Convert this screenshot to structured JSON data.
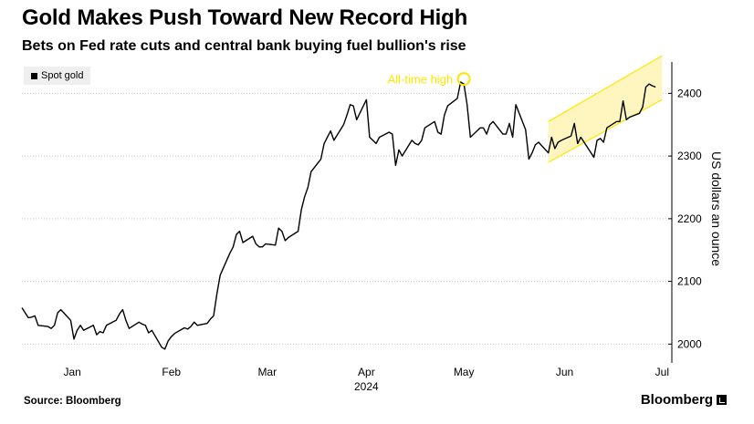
{
  "header": {
    "title": "Gold Makes Push Toward New Record High",
    "subtitle": "Bets on Fed rate cuts and central bank buying fuel bullion's rise"
  },
  "legend": {
    "label": "Spot gold",
    "color": "#000000"
  },
  "footer": {
    "source": "Source: Bloomberg",
    "brand": "Bloomberg"
  },
  "colors": {
    "line": "#000000",
    "annotation": "#ffe500",
    "channel": "#fff6bf",
    "grid": "#c8c8c8"
  },
  "chart_data": {
    "type": "line",
    "title": "Gold Makes Push Toward New Record High",
    "subtitle": "Bets on Fed rate cuts and central bank buying fuel bullion's rise",
    "ylabel": "US dollars an ounce",
    "xlabel": "",
    "ylim": [
      1970,
      2450
    ],
    "y_ticks": [
      2000,
      2100,
      2200,
      2300,
      2400
    ],
    "x_ticks": [
      {
        "label": "Jan",
        "x": 15.5
      },
      {
        "label": "Feb",
        "x": 46
      },
      {
        "label": "Mar",
        "x": 75.5
      },
      {
        "label": "Apr",
        "x": 106
      },
      {
        "label": "May",
        "x": 136
      },
      {
        "label": "Jun",
        "x": 167
      },
      {
        "label": "Jul",
        "x": 197
      }
    ],
    "x_year_label": "2024",
    "x_year_under": "Apr",
    "grid": "horizontal-dotted",
    "legend_position": "top-left",
    "series": [
      {
        "name": "Spot gold",
        "x": [
          0,
          2,
          3,
          4,
          5,
          8,
          9,
          10,
          11,
          12,
          15,
          16,
          17,
          18,
          19,
          22,
          23,
          24,
          25,
          26,
          29,
          30,
          31,
          32,
          33,
          36,
          37,
          38,
          39,
          40,
          43,
          44,
          45,
          46,
          47,
          50,
          51,
          52,
          53,
          54,
          57,
          58,
          59,
          60,
          61,
          64,
          65,
          66,
          67,
          68,
          71,
          72,
          73,
          74,
          75,
          78,
          79,
          80,
          81,
          82,
          85,
          86,
          87,
          88,
          89,
          92,
          93,
          94,
          95,
          96,
          99,
          100,
          101,
          102,
          103,
          106,
          107,
          108,
          109,
          110,
          113,
          114,
          115,
          116,
          117,
          120,
          121,
          122,
          123,
          124,
          127,
          128,
          129,
          130,
          131,
          134,
          135,
          136,
          137,
          138,
          141,
          142,
          143,
          144,
          145,
          148,
          149,
          150,
          151,
          152,
          155,
          156,
          157,
          158,
          159,
          162,
          163,
          164,
          165,
          166,
          169,
          170,
          171,
          172,
          173,
          176,
          177,
          178,
          179,
          180,
          183,
          184,
          185,
          186,
          187,
          190,
          191,
          192,
          193,
          194,
          195
        ],
        "values": [
          2058,
          2042,
          2043,
          2045,
          2030,
          2028,
          2025,
          2030,
          2050,
          2055,
          2038,
          2008,
          2022,
          2030,
          2022,
          2030,
          2015,
          2020,
          2018,
          2030,
          2038,
          2048,
          2055,
          2038,
          2025,
          2035,
          2032,
          2030,
          2018,
          2022,
          1995,
          1992,
          2005,
          2012,
          2017,
          2026,
          2024,
          2028,
          2035,
          2030,
          2033,
          2040,
          2045,
          2080,
          2110,
          2145,
          2155,
          2175,
          2180,
          2162,
          2172,
          2160,
          2155,
          2155,
          2160,
          2158,
          2185,
          2180,
          2165,
          2170,
          2180,
          2215,
          2235,
          2250,
          2275,
          2295,
          2320,
          2330,
          2340,
          2325,
          2350,
          2365,
          2382,
          2380,
          2358,
          2390,
          2330,
          2325,
          2320,
          2330,
          2338,
          2335,
          2285,
          2310,
          2300,
          2325,
          2320,
          2318,
          2325,
          2345,
          2355,
          2338,
          2335,
          2365,
          2380,
          2392,
          2418,
          2415,
          2382,
          2330,
          2345,
          2345,
          2335,
          2350,
          2355,
          2335,
          2335,
          2352,
          2330,
          2382,
          2342,
          2295,
          2305,
          2318,
          2322,
          2305,
          2330,
          2312,
          2322,
          2325,
          2332,
          2352,
          2320,
          2330,
          2322,
          2298,
          2325,
          2328,
          2322,
          2345,
          2355,
          2355,
          2388,
          2358,
          2362,
          2368,
          2378,
          2410,
          2415,
          2412,
          2410
        ]
      }
    ],
    "annotations": [
      {
        "text": "All-time high",
        "x": 136,
        "value": 2423
      }
    ],
    "channel": {
      "x": [
        162,
        197
      ],
      "lower": [
        2290,
        2390
      ],
      "upper": [
        2355,
        2460
      ]
    }
  }
}
